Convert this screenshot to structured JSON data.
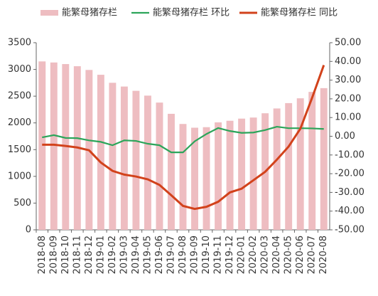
{
  "chart_data": {
    "type": "bar",
    "categories": [
      "2018-08",
      "2018-09",
      "2018-10",
      "2018-11",
      "2018-12",
      "2019-01",
      "2019-02",
      "2019-03",
      "2019-04",
      "2019-05",
      "2019-06",
      "2019-07",
      "2019-08",
      "2019-09",
      "2019-10",
      "2019-11",
      "2019-12",
      "2020-01",
      "2020-02",
      "2020-03",
      "2020-04",
      "2020-05",
      "2020-06",
      "2020-07",
      "2020-08"
    ],
    "series": [
      {
        "name": "能繁母猪存栏",
        "type": "bar",
        "color": "#eebdc1",
        "values": [
          3150,
          3130,
          3100,
          3060,
          2990,
          2900,
          2750,
          2680,
          2600,
          2510,
          2380,
          2170,
          1980,
          1910,
          1920,
          2010,
          2040,
          2080,
          2100,
          2180,
          2270,
          2370,
          2460,
          2580,
          2650
        ]
      },
      {
        "name": "能繁母猪存栏 环比",
        "type": "line",
        "axis": "y2",
        "color": "#2ca55a",
        "values": [
          -0.6,
          0.6,
          -0.9,
          -1,
          -2.2,
          -3,
          -4.8,
          -2.2,
          -2.5,
          -4,
          -4.8,
          -8.6,
          -8.6,
          -2.7,
          1.2,
          4.4,
          2.8,
          1.8,
          2,
          3.3,
          5.1,
          4.3,
          4.3,
          4.2,
          3.9
        ]
      },
      {
        "name": "能繁母猪存栏 同比",
        "type": "line",
        "axis": "y2",
        "color": "#d2421b",
        "values": [
          -4.5,
          -4.5,
          -5.2,
          -6,
          -7.5,
          -14,
          -18.5,
          -20.5,
          -21.5,
          -23,
          -26,
          -31.5,
          -37.2,
          -38.8,
          -37.7,
          -35,
          -30,
          -28,
          -23.5,
          -19,
          -12.5,
          -5.5,
          4,
          20.5,
          38
        ]
      }
    ],
    "ylim": [
      0,
      3500
    ],
    "yticks": [
      0,
      500,
      1000,
      1500,
      2000,
      2500,
      3000,
      3500
    ],
    "y2lim": [
      -50,
      50
    ],
    "y2ticks": [
      {
        "value": -50,
        "label": "-50.00"
      },
      {
        "value": -40,
        "label": "-40.00"
      },
      {
        "value": -30,
        "label": "-30.00"
      },
      {
        "value": -20,
        "label": "-20.00"
      },
      {
        "value": -10,
        "label": "-10.00"
      },
      {
        "value": 0,
        "label": "0.00"
      },
      {
        "value": 10,
        "label": "10.00"
      },
      {
        "value": 20,
        "label": "20.00"
      },
      {
        "value": 30,
        "label": "30.00"
      },
      {
        "value": 40,
        "label": "40.00"
      },
      {
        "value": 50,
        "label": "50.00"
      }
    ],
    "grid": false,
    "legend": "top"
  }
}
